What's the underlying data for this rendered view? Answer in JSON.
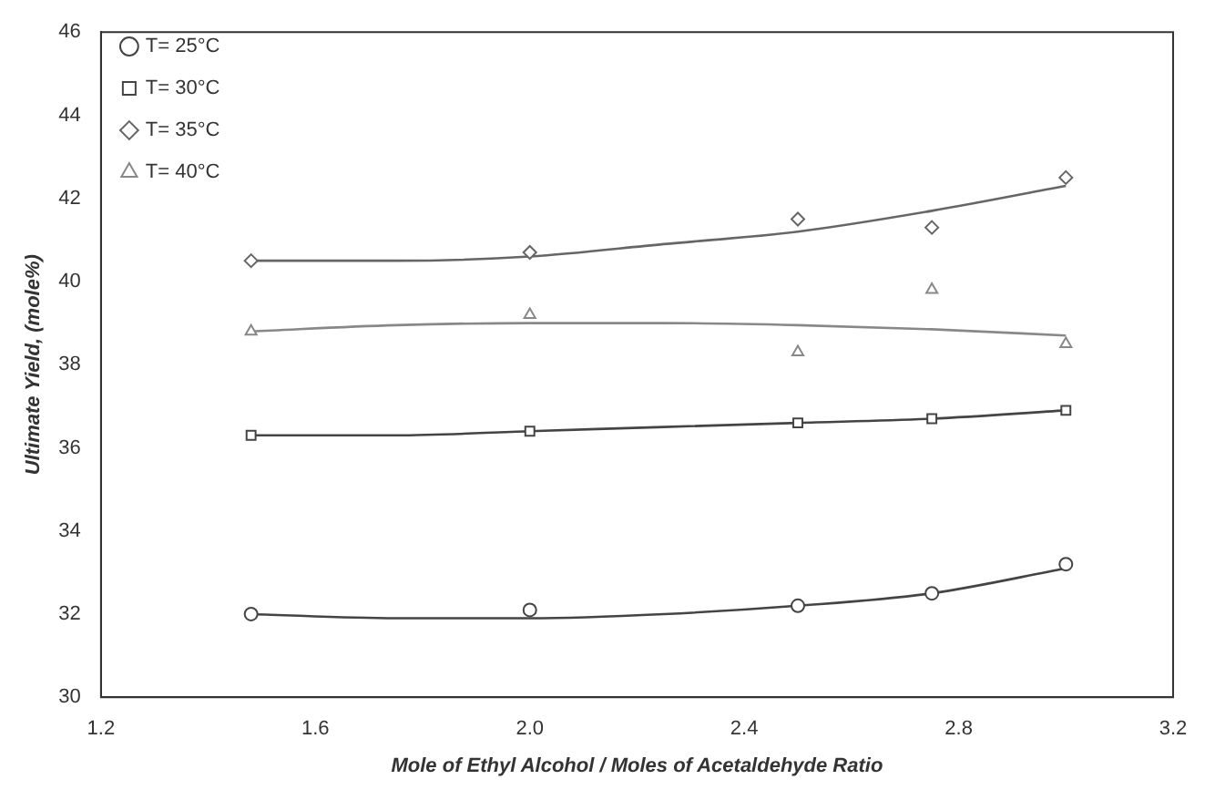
{
  "chart_data": {
    "type": "scatter",
    "xlabel": "Mole of Ethyl Alcohol / Moles of Acetaldehyde Ratio",
    "ylabel": "Ultimate Yield, (mole%)",
    "xlim": [
      1.2,
      3.2
    ],
    "xticks": [
      1.2,
      1.6,
      {
        "value": 2.0,
        "label": "2.0"
      },
      2.4,
      2.8,
      3.2
    ],
    "ylim": [
      30,
      46
    ],
    "yticks": [
      30,
      32,
      34,
      36,
      38,
      40,
      42,
      44,
      46
    ],
    "grid": false,
    "legend": "top left",
    "series": [
      {
        "name": "T= 25°C",
        "marker": "circle",
        "color": "#444444",
        "x": [
          1.48,
          2.0,
          2.5,
          2.75,
          3.0
        ],
        "values": [
          32.0,
          32.1,
          32.2,
          32.5,
          33.2
        ]
      },
      {
        "name": "T= 30°C",
        "marker": "square",
        "color": "#444444",
        "x": [
          1.48,
          2.0,
          2.5,
          2.75,
          3.0
        ],
        "values": [
          36.3,
          36.4,
          36.6,
          36.7,
          36.9
        ]
      },
      {
        "name": "T= 35°C",
        "marker": "diamond",
        "color": "#666666",
        "x": [
          1.48,
          2.0,
          2.5,
          2.75,
          3.0
        ],
        "values": [
          40.5,
          40.7,
          41.5,
          41.3,
          42.5
        ]
      },
      {
        "name": "T= 40°C",
        "marker": "triangle",
        "color": "#888888",
        "x": [
          1.48,
          2.0,
          2.5,
          2.75,
          3.0
        ],
        "values": [
          38.8,
          39.2,
          38.3,
          39.8,
          38.5
        ]
      },
      {
        "type": "line",
        "marker": "none",
        "color": "#444444",
        "x": [
          1.48,
          1.75,
          2.0,
          2.25,
          2.5,
          2.75,
          3.0
        ],
        "values": [
          32.0,
          31.9,
          31.9,
          32.0,
          32.2,
          32.5,
          33.1
        ]
      },
      {
        "type": "line",
        "marker": "none",
        "color": "#444444",
        "x": [
          1.48,
          1.75,
          2.0,
          2.25,
          2.5,
          2.75,
          3.0
        ],
        "values": [
          36.3,
          36.3,
          36.4,
          36.5,
          36.6,
          36.7,
          36.9
        ]
      },
      {
        "type": "line",
        "marker": "none",
        "color": "#666666",
        "x": [
          1.48,
          1.75,
          2.0,
          2.25,
          2.5,
          2.75,
          3.0
        ],
        "values": [
          40.5,
          40.5,
          40.6,
          40.9,
          41.2,
          41.7,
          42.3
        ]
      },
      {
        "type": "line",
        "marker": "none",
        "color": "#888888",
        "x": [
          1.48,
          1.75,
          2.0,
          2.25,
          2.5,
          2.75,
          3.0
        ],
        "values": [
          38.8,
          38.95,
          39.0,
          39.0,
          38.95,
          38.85,
          38.7
        ]
      }
    ]
  }
}
